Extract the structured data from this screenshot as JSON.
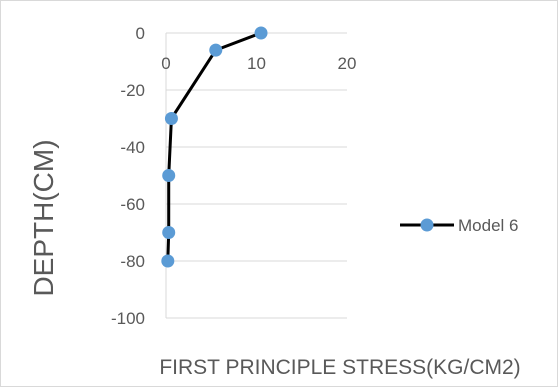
{
  "chart_data": {
    "type": "line",
    "x_axis_position": "top",
    "xlabel": "FIRST PRINCIPLE STRESS(KG/CM2)",
    "ylabel": "DEPTH(CM)",
    "xlim": [
      0,
      20
    ],
    "ylim": [
      -100,
      0
    ],
    "x_ticks": [
      0,
      10,
      20
    ],
    "y_ticks": [
      0,
      -20,
      -40,
      -60,
      -80,
      -100
    ],
    "grid": {
      "horizontal": true,
      "vertical": false
    },
    "legend": "right",
    "series": [
      {
        "name": "Model 6",
        "color": "#000000",
        "marker_color": "#5b9bd5",
        "x": [
          10.5,
          5.5,
          0.6,
          0.3,
          0.3,
          0.2
        ],
        "y": [
          0,
          -6,
          -30,
          -50,
          -70,
          -80
        ]
      }
    ]
  }
}
